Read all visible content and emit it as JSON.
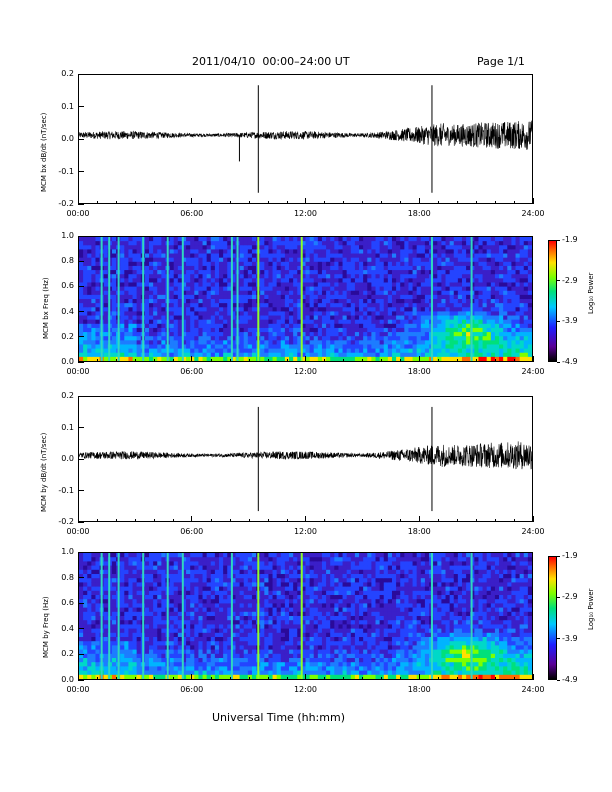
{
  "header": {
    "title": "2011/04/10  00:00–24:00 UT",
    "page": "Page 1/1"
  },
  "xlabel": "Universal Time (hh:mm)",
  "x_ticks": [
    "00:00",
    "06:00",
    "12:00",
    "18:00",
    "24:00"
  ],
  "colorbar": {
    "ticks": [
      "-1.9",
      "-2.9",
      "-3.9",
      "-4.9"
    ],
    "label": "Log₁₀ Power"
  },
  "chart_data": [
    {
      "type": "line",
      "ylabel": "MCM bx dB/dt (nT/sec)",
      "ylim": [
        -0.2,
        0.2
      ],
      "y_ticks": [
        "0.2",
        "0.1",
        "0.0",
        "-0.1",
        "-0.2"
      ],
      "xlim": [
        "00:00",
        "24:00"
      ],
      "spikes_hours": [
        8.5,
        9.5,
        18.7
      ],
      "noise_growth_after_hour": 15
    },
    {
      "type": "heatmap",
      "ylabel": "MCM bx Freq (Hz)",
      "ylim": [
        0.0,
        1.0
      ],
      "y_ticks": [
        "1.0",
        "0.8",
        "0.6",
        "0.4",
        "0.2",
        "0.0"
      ],
      "xlim": [
        "00:00",
        "24:00"
      ],
      "color_range": [
        -4.9,
        -1.9
      ],
      "vertical_lines_hours": [
        1.2,
        1.6,
        2.1,
        3.4,
        4.7,
        5.5,
        8.1,
        8.4,
        9.5,
        11.8,
        18.7,
        20.8
      ],
      "enhancement": {
        "hour": 20.5,
        "freq_hz": 0.25
      }
    },
    {
      "type": "line",
      "ylabel": "MCM by dB/dt (nT/sec)",
      "ylim": [
        -0.2,
        0.2
      ],
      "y_ticks": [
        "0.2",
        "0.1",
        "0.0",
        "-0.1",
        "-0.2"
      ],
      "xlim": [
        "00:00",
        "24:00"
      ],
      "spikes_hours": [
        9.5,
        18.7
      ],
      "noise_growth_after_hour": 15
    },
    {
      "type": "heatmap",
      "ylabel": "MCM by Freq (Hz)",
      "ylim": [
        0.0,
        1.0
      ],
      "y_ticks": [
        "1.0",
        "0.8",
        "0.6",
        "0.4",
        "0.2",
        "0.0"
      ],
      "xlim": [
        "00:00",
        "24:00"
      ],
      "color_range": [
        -4.9,
        -1.9
      ],
      "vertical_lines_hours": [
        1.2,
        1.6,
        2.1,
        3.4,
        4.7,
        5.5,
        8.1,
        9.5,
        11.8,
        18.7,
        20.8
      ],
      "enhancement": {
        "hour": 20.5,
        "freq_hz": 0.22
      }
    }
  ]
}
